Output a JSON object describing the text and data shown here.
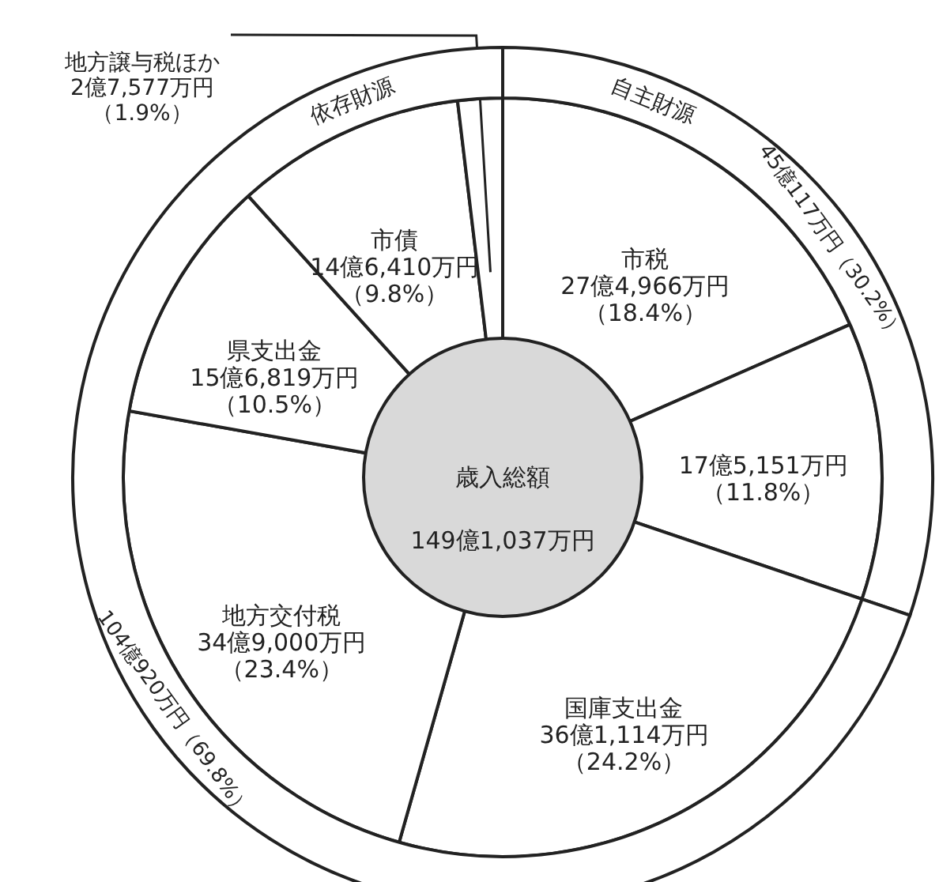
{
  "chart_data": [
    {
      "type": "donut",
      "annotations": [
        "歳入総額\n149億1,037万円"
      ],
      "categories": [
        "市税",
        null,
        "国庫支出金",
        "地方交付税",
        "県支出金",
        "市債",
        "地方譲与税ほか"
      ],
      "values": [
        18.4,
        11.8,
        24.2,
        23.4,
        10.5,
        9.8,
        1.9
      ],
      "value_labels": [
        "27億4,966万円（18.4%）",
        "17億5,151万円（11.8%）",
        "36億1,114万円（24.2%）",
        "34億9,000万円（23.4%）",
        "15億6,819万円（10.5%）",
        "14億6,410万円（9.8%）",
        "2億7,577万円（1.9%）"
      ],
      "colors": [
        "#ffffff",
        "#ffffff",
        "#ffffff",
        "#ffffff",
        "#ffffff",
        "#ffffff",
        "#ffffff"
      ]
    },
    {
      "type": "donut",
      "categories": [
        "自主財源",
        "依存財源"
      ],
      "values": [
        30.2,
        69.8
      ],
      "value_labels": [
        "45億117万円（30.2%）",
        "104億920万円（69.8%）"
      ],
      "colors": [
        "#ffffff",
        "#ffffff"
      ]
    }
  ]
}
